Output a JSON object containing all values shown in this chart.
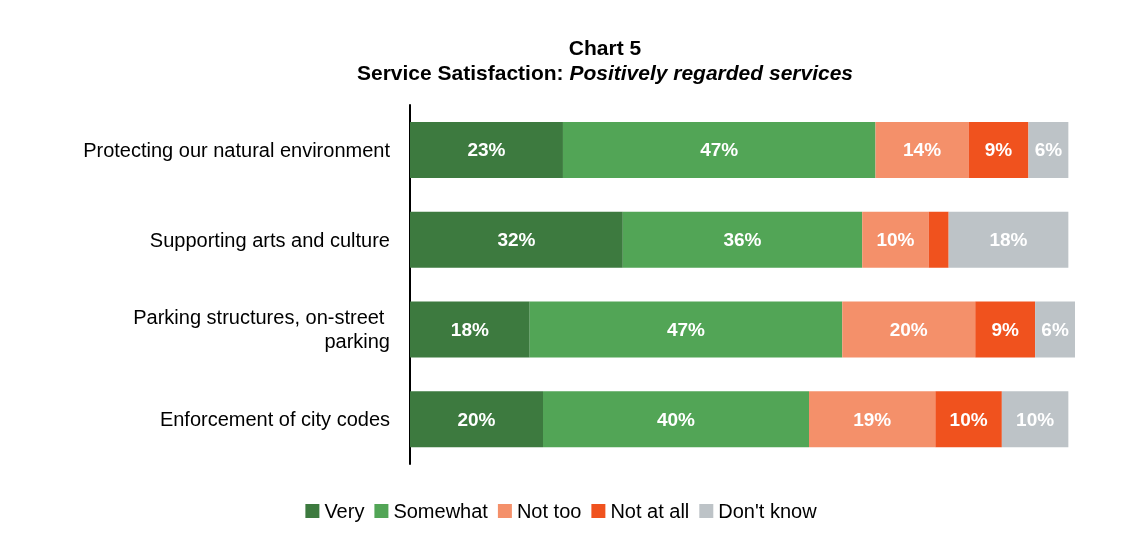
{
  "chart_data": {
    "type": "bar",
    "orientation": "horizontal",
    "stacked": true,
    "title": "Chart 5",
    "subtitle": "Service Satisfaction: Positively regarded services",
    "categories": [
      "Protecting our natural environment",
      "Supporting arts and culture",
      "Parking structures, on-street parking",
      "Enforcement of city codes"
    ],
    "series": [
      {
        "name": "Very",
        "color": "#3d7a3f",
        "values": [
          23,
          32,
          18,
          20
        ],
        "value_labels": [
          "23%",
          "32%",
          "18%",
          "20%"
        ]
      },
      {
        "name": "Somewhat",
        "color": "#52a556",
        "values": [
          47,
          36,
          47,
          40
        ],
        "value_labels": [
          "47%",
          "36%",
          "47%",
          "40%"
        ]
      },
      {
        "name": "Not too",
        "color": "#f4906a",
        "values": [
          14,
          10,
          20,
          19
        ],
        "value_labels": [
          "14%",
          "10%",
          "20%",
          "19%"
        ]
      },
      {
        "name": "Not at all",
        "color": "#f0521e",
        "values": [
          9,
          3,
          9,
          10
        ],
        "value_labels": [
          "9%",
          null,
          "9%",
          "10%"
        ]
      },
      {
        "name": "Don't know",
        "color": "#bdc3c7",
        "values": [
          6,
          18,
          6,
          10
        ],
        "value_labels": [
          "6%",
          "18%",
          "6%",
          "10%"
        ]
      }
    ],
    "legend": "bottom"
  }
}
